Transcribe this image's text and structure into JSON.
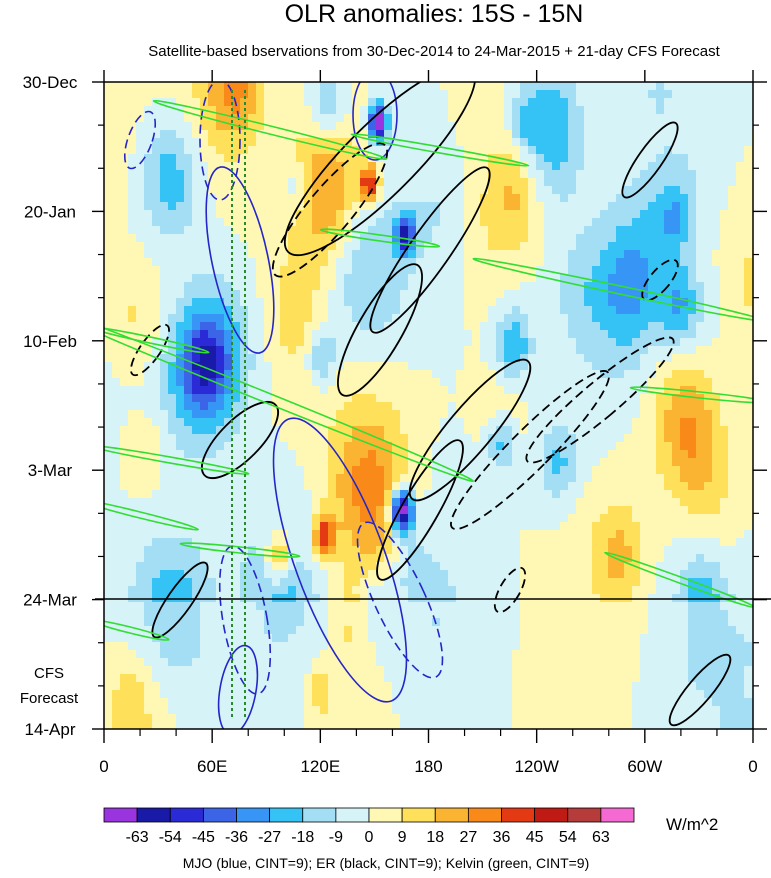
{
  "chart_data": {
    "type": "heatmap",
    "title": "OLR anomalies: 15S - 15N",
    "subtitle": "Satellite-based bservations from 30-Dec-2014 to 24-Mar-2015 + 21-day CFS Forecast",
    "x_ticks": [
      "0",
      "60E",
      "120E",
      "180",
      "120W",
      "60W",
      "0"
    ],
    "x_tick_lon": [
      0,
      60,
      120,
      180,
      240,
      300,
      360
    ],
    "y_ticks": [
      "30-Dec",
      "20-Jan",
      "10-Feb",
      "3-Mar",
      "24-Mar",
      "14-Apr"
    ],
    "y_tick_day": [
      0,
      21,
      42,
      63,
      84,
      105
    ],
    "forecast_start_label": "24-Mar",
    "forecast_label": [
      "CFS",
      "Forecast"
    ],
    "colorbar": {
      "levels": [
        "-63",
        "-54",
        "-45",
        "-36",
        "-27",
        "-18",
        "-9",
        "0",
        "9",
        "18",
        "27",
        "36",
        "45",
        "54",
        "63"
      ],
      "colors": [
        "#9a34de",
        "#1a1aa8",
        "#2a2ad6",
        "#3c64e6",
        "#3796f5",
        "#35c3f5",
        "#a3def5",
        "#d6f3f8",
        "#fff8b4",
        "#fee05a",
        "#fbb432",
        "#f98a1a",
        "#e43a14",
        "#c01a14",
        "#b63b3b",
        "#f46ad2"
      ],
      "unit": "W/m^2"
    },
    "footnote": "MJO (blue, CINT=9); ER (black, CINT=9); Kelvin (green, CINT=9)",
    "colors": {
      "mjo": "#2626c8",
      "er": "#000000",
      "kelvin": "#33dd33",
      "marker": "#2a8a2a"
    }
  }
}
